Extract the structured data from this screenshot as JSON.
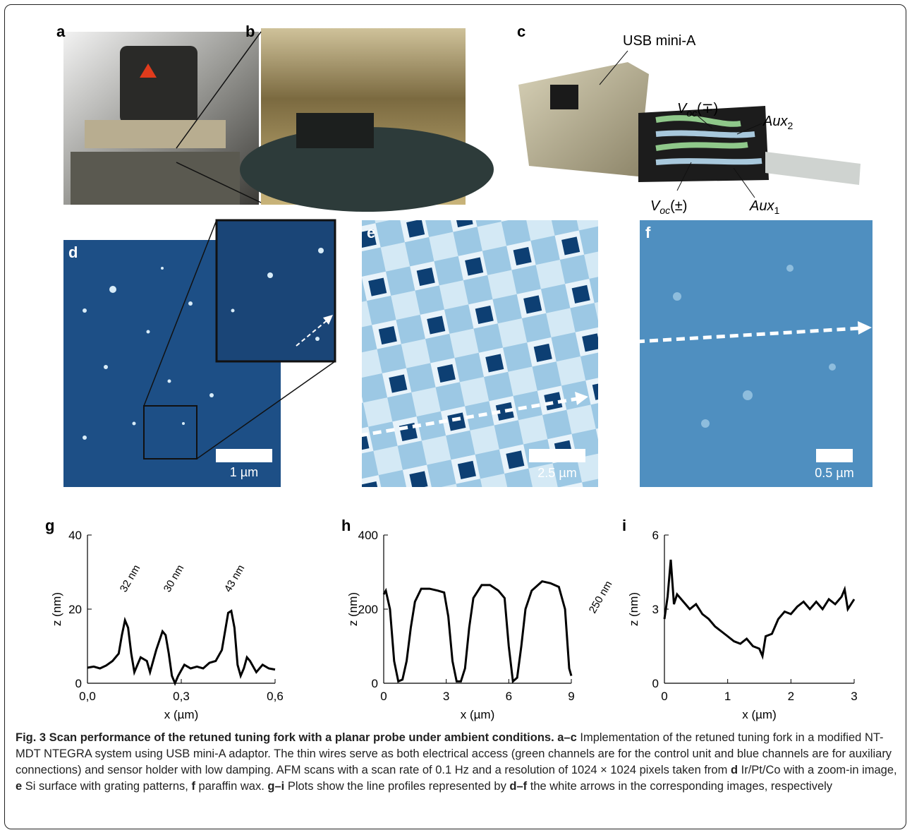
{
  "panel_labels": [
    "a",
    "b",
    "c",
    "d",
    "e",
    "f"
  ],
  "connector_labels": [
    {
      "main": "USB mini-A"
    },
    {
      "main": "V",
      "sub": "oc",
      "rest": "(∓)"
    },
    {
      "main": "Aux",
      "sub": "2"
    },
    {
      "main": "V",
      "sub": "oc",
      "rest": "(±)"
    },
    {
      "main": "Aux",
      "sub": "1"
    }
  ],
  "scale_bars": [
    "1 µm",
    "2.5 µm",
    "0.5 µm"
  ],
  "chart_data": [
    {
      "type": "line",
      "panel_label": "g",
      "xlabel": "x (µm)",
      "ylabel": "z (nm)",
      "color": "#000000",
      "xlim": [
        0,
        0.6
      ],
      "ylim": [
        0,
        40
      ],
      "xticks": [
        {
          "value": 0,
          "label": "0,0"
        },
        {
          "value": 0.3,
          "label": "0,3"
        },
        {
          "value": 0.6,
          "label": "0,6"
        }
      ],
      "yticks": [
        0,
        20,
        40
      ],
      "annotations": [
        "32 nm",
        "30 nm",
        "43 nm"
      ],
      "x": [
        0,
        0.02,
        0.04,
        0.06,
        0.08,
        0.1,
        0.11,
        0.12,
        0.13,
        0.14,
        0.15,
        0.16,
        0.17,
        0.19,
        0.2,
        0.22,
        0.24,
        0.25,
        0.26,
        0.27,
        0.28,
        0.29,
        0.31,
        0.33,
        0.35,
        0.37,
        0.39,
        0.41,
        0.43,
        0.45,
        0.46,
        0.47,
        0.48,
        0.49,
        0.5,
        0.51,
        0.52,
        0.54,
        0.56,
        0.58,
        0.6
      ],
      "values": [
        4.2,
        4.5,
        4,
        4.8,
        6,
        8,
        13,
        17,
        15,
        8,
        3,
        5,
        7,
        6,
        3,
        9,
        14,
        13,
        8,
        2,
        0,
        2,
        5,
        4,
        4.5,
        4,
        5.5,
        6,
        9,
        19,
        19.5,
        15,
        5,
        2,
        4,
        7,
        6,
        3,
        5,
        4,
        3.7
      ]
    },
    {
      "type": "line",
      "panel_label": "h",
      "xlabel": "x (µm)",
      "ylabel": "z (nm)",
      "color": "#000000",
      "xlim": [
        0,
        9
      ],
      "ylim": [
        0,
        400
      ],
      "xticks": [
        0,
        3,
        6,
        9
      ],
      "yticks": [
        0,
        200,
        400
      ],
      "annotations": [
        "250 nm"
      ],
      "x": [
        0,
        0.1,
        0.3,
        0.5,
        0.7,
        0.9,
        1.1,
        1.3,
        1.5,
        1.8,
        2.2,
        2.6,
        2.9,
        3.1,
        3.3,
        3.5,
        3.7,
        3.9,
        4.1,
        4.3,
        4.7,
        5.1,
        5.5,
        5.8,
        6,
        6.2,
        6.4,
        6.6,
        6.8,
        7.1,
        7.6,
        8,
        8.4,
        8.7,
        8.9,
        9
      ],
      "values": [
        240,
        250,
        200,
        60,
        5,
        10,
        60,
        150,
        220,
        255,
        255,
        250,
        245,
        180,
        60,
        5,
        5,
        40,
        150,
        230,
        265,
        265,
        250,
        230,
        100,
        5,
        15,
        100,
        200,
        250,
        275,
        270,
        260,
        200,
        40,
        20
      ]
    },
    {
      "type": "line",
      "panel_label": "i",
      "xlabel": "x (µm)",
      "ylabel": "z (nm)",
      "color": "#000000",
      "xlim": [
        0,
        3
      ],
      "ylim": [
        0,
        6
      ],
      "xticks": [
        0,
        1,
        2,
        3
      ],
      "yticks": [
        0,
        3,
        6
      ],
      "x": [
        0,
        0.05,
        0.1,
        0.15,
        0.2,
        0.3,
        0.4,
        0.5,
        0.6,
        0.7,
        0.8,
        0.9,
        1.0,
        1.1,
        1.2,
        1.3,
        1.4,
        1.5,
        1.55,
        1.6,
        1.7,
        1.8,
        1.9,
        2.0,
        2.1,
        2.2,
        2.3,
        2.4,
        2.5,
        2.6,
        2.7,
        2.8,
        2.85,
        2.9,
        3.0
      ],
      "values": [
        2.6,
        3.5,
        5.0,
        3.2,
        3.6,
        3.3,
        3.0,
        3.2,
        2.8,
        2.6,
        2.3,
        2.1,
        1.9,
        1.7,
        1.6,
        1.8,
        1.5,
        1.4,
        1.1,
        1.9,
        2.0,
        2.6,
        2.9,
        2.8,
        3.1,
        3.3,
        3.0,
        3.3,
        3.0,
        3.4,
        3.2,
        3.5,
        3.8,
        3.0,
        3.4
      ]
    }
  ],
  "caption": [
    {
      "text": "Fig. 3 Scan performance of the retuned tuning fork with a planar probe under ambient conditions. a–c",
      "bold": true
    },
    {
      "text": " Implementation of the retuned tuning fork in a modified NT-MDT NTEGRA system using USB mini-A adaptor. The thin wires serve as both electrical access (green channels are for the control unit and blue channels are for auxiliary connections) and sensor holder with low damping. AFM scans with a scan rate of 0.1 Hz and a resolution of 1024 × 1024 pixels taken from ",
      "bold": false
    },
    {
      "text": "d",
      "bold": true
    },
    {
      "text": " Ir/Pt/Co with a zoom-in image, ",
      "bold": false
    },
    {
      "text": "e",
      "bold": true
    },
    {
      "text": " Si surface with grating patterns, ",
      "bold": false
    },
    {
      "text": "f",
      "bold": true
    },
    {
      "text": " paraffin wax. ",
      "bold": false
    },
    {
      "text": "g–i",
      "bold": true
    },
    {
      "text": " Plots show the line profiles represented by ",
      "bold": false
    },
    {
      "text": "d–f",
      "bold": true
    },
    {
      "text": " the white arrows in the corresponding images, respectively",
      "bold": false
    }
  ]
}
